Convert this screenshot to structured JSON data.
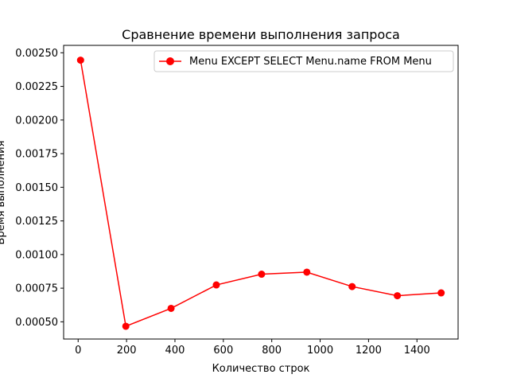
{
  "chart_data": {
    "type": "line",
    "title": "Сравнение времени выполнения запроса",
    "xlabel": "Количество строк",
    "ylabel": "Время выполнения",
    "xlim": [
      -60,
      1570
    ],
    "ylim": [
      0.000372,
      0.002555
    ],
    "xticks": [
      0,
      200,
      400,
      600,
      800,
      1000,
      1200,
      1400
    ],
    "yticks": [
      0.0005,
      0.00075,
      0.001,
      0.00125,
      0.0015,
      0.00175,
      0.002,
      0.00225,
      0.0025
    ],
    "ytick_labels": [
      "0.00050",
      "0.00075",
      "0.00100",
      "0.00125",
      "0.00150",
      "0.00175",
      "0.00200",
      "0.00225",
      "0.00250"
    ],
    "grid": false,
    "legend_position": "top-right",
    "series": [
      {
        "name": "Menu EXCEPT SELECT Menu.name FROM Menu",
        "color": "#ff0000",
        "marker": "circle",
        "x": [
          10,
          197,
          384,
          571,
          758,
          945,
          1132,
          1319,
          1500
        ],
        "y": [
          0.002445,
          0.000467,
          0.0006,
          0.000774,
          0.000854,
          0.000869,
          0.000762,
          0.000694,
          0.000715
        ]
      }
    ]
  }
}
